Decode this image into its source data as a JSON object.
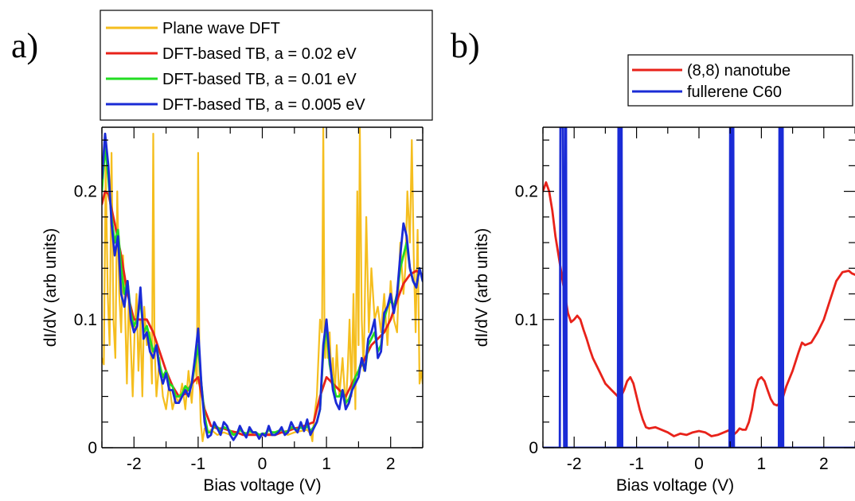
{
  "chart_data": [
    {
      "panel_tag": "a)",
      "type": "line",
      "xlabel": "Bias voltage (V)",
      "ylabel": "dI/dV (arb units)",
      "xlim": [
        -2.5,
        2.5
      ],
      "ylim": [
        0,
        0.25
      ],
      "xticks": [
        "-2",
        "-1",
        "0",
        "1",
        "2"
      ],
      "yticks": [
        "0",
        "0.1",
        "0.2"
      ],
      "xtick_values": [
        -2,
        -1,
        0,
        1,
        2
      ],
      "ytick_values": [
        0,
        0.1,
        0.2
      ],
      "grid": false,
      "legend_position": "top (above plot)",
      "series": [
        {
          "name": "Plane wave DFT",
          "color": "#F5BE1E",
          "x": [
            -2.5,
            -2.47,
            -2.44,
            -2.41,
            -2.38,
            -2.35,
            -2.32,
            -2.29,
            -2.26,
            -2.23,
            -2.2,
            -2.17,
            -2.14,
            -2.11,
            -2.08,
            -2.05,
            -2.02,
            -1.99,
            -1.96,
            -1.93,
            -1.9,
            -1.87,
            -1.84,
            -1.8,
            -1.75,
            -1.72,
            -1.7,
            -1.68,
            -1.65,
            -1.6,
            -1.55,
            -1.5,
            -1.45,
            -1.4,
            -1.35,
            -1.3,
            -1.25,
            -1.2,
            -1.15,
            -1.1,
            -1.05,
            -1.02,
            -1.0,
            -0.98,
            -0.96,
            -0.93,
            -0.9,
            -0.85,
            -0.8,
            -0.7,
            -0.6,
            -0.5,
            -0.4,
            -0.3,
            -0.2,
            -0.1,
            0.0,
            0.1,
            0.2,
            0.3,
            0.4,
            0.5,
            0.6,
            0.7,
            0.76,
            0.78,
            0.8,
            0.85,
            0.9,
            0.93,
            0.95,
            0.97,
            0.98,
            1.0,
            1.02,
            1.05,
            1.08,
            1.1,
            1.13,
            1.16,
            1.2,
            1.25,
            1.3,
            1.33,
            1.36,
            1.39,
            1.42,
            1.45,
            1.48,
            1.5,
            1.52,
            1.55,
            1.58,
            1.62,
            1.66,
            1.7,
            1.75,
            1.8,
            1.85,
            1.9,
            1.95,
            2.0,
            2.05,
            2.1,
            2.15,
            2.2,
            2.23,
            2.26,
            2.3,
            2.33,
            2.36,
            2.39,
            2.42,
            2.45,
            2.48,
            2.5
          ],
          "y": [
            0.07,
            0.065,
            0.22,
            0.12,
            0.08,
            0.23,
            0.1,
            0.07,
            0.2,
            0.12,
            0.09,
            0.15,
            0.11,
            0.05,
            0.12,
            0.08,
            0.04,
            0.09,
            0.12,
            0.06,
            0.1,
            0.04,
            0.11,
            0.08,
            0.09,
            0.05,
            0.245,
            0.08,
            0.04,
            0.07,
            0.04,
            0.03,
            0.05,
            0.03,
            0.04,
            0.035,
            0.05,
            0.03,
            0.06,
            0.035,
            0.07,
            0.05,
            0.23,
            0.06,
            0.02,
            0.005,
            0.015,
            0.012,
            0.014,
            0.01,
            0.012,
            0.01,
            0.012,
            0.01,
            0.011,
            0.01,
            0.01,
            0.011,
            0.01,
            0.012,
            0.01,
            0.012,
            0.013,
            0.014,
            0.01,
            0.005,
            0.02,
            0.04,
            0.1,
            0.09,
            0.25,
            0.08,
            0.07,
            0.1,
            0.07,
            0.09,
            0.05,
            0.07,
            0.04,
            0.08,
            0.04,
            0.07,
            0.03,
            0.06,
            0.1,
            0.04,
            0.12,
            0.03,
            0.2,
            0.08,
            0.25,
            0.1,
            0.06,
            0.18,
            0.09,
            0.14,
            0.1,
            0.11,
            0.09,
            0.12,
            0.08,
            0.13,
            0.1,
            0.09,
            0.16,
            0.12,
            0.14,
            0.2,
            0.16,
            0.24,
            0.15,
            0.09,
            0.17,
            0.05,
            0.06,
            0.05
          ]
        },
        {
          "name": "DFT-based TB, a = 0.02 eV",
          "color": "#E8221A",
          "x": [
            -2.5,
            -2.45,
            -2.4,
            -2.3,
            -2.2,
            -2.1,
            -2.0,
            -1.9,
            -1.8,
            -1.7,
            -1.6,
            -1.5,
            -1.4,
            -1.3,
            -1.2,
            -1.1,
            -1.0,
            -0.9,
            -0.8,
            -0.7,
            -0.6,
            -0.5,
            -0.4,
            -0.3,
            -0.2,
            -0.1,
            0.0,
            0.1,
            0.2,
            0.3,
            0.4,
            0.5,
            0.6,
            0.7,
            0.8,
            0.9,
            1.0,
            1.1,
            1.2,
            1.3,
            1.4,
            1.5,
            1.6,
            1.7,
            1.8,
            1.9,
            2.0,
            2.1,
            2.2,
            2.3,
            2.4,
            2.5
          ],
          "y": [
            0.19,
            0.2,
            0.198,
            0.175,
            0.15,
            0.12,
            0.1,
            0.1,
            0.1,
            0.09,
            0.075,
            0.06,
            0.048,
            0.04,
            0.042,
            0.05,
            0.055,
            0.03,
            0.017,
            0.015,
            0.015,
            0.013,
            0.012,
            0.01,
            0.01,
            0.01,
            0.01,
            0.01,
            0.01,
            0.012,
            0.013,
            0.015,
            0.016,
            0.018,
            0.02,
            0.04,
            0.055,
            0.05,
            0.045,
            0.04,
            0.05,
            0.06,
            0.07,
            0.08,
            0.085,
            0.09,
            0.1,
            0.115,
            0.128,
            0.135,
            0.138,
            0.135
          ]
        },
        {
          "name": "DFT-based TB, a = 0.01 eV",
          "color": "#22DD22",
          "x": [
            -2.5,
            -2.45,
            -2.4,
            -2.35,
            -2.3,
            -2.25,
            -2.2,
            -2.15,
            -2.1,
            -2.05,
            -2.0,
            -1.95,
            -1.9,
            -1.85,
            -1.8,
            -1.75,
            -1.7,
            -1.65,
            -1.6,
            -1.55,
            -1.5,
            -1.45,
            -1.4,
            -1.35,
            -1.3,
            -1.25,
            -1.2,
            -1.15,
            -1.1,
            -1.05,
            -1.0,
            -0.95,
            -0.9,
            -0.85,
            -0.8,
            -0.75,
            -0.7,
            -0.65,
            -0.6,
            -0.55,
            -0.5,
            -0.45,
            -0.4,
            -0.35,
            -0.3,
            -0.25,
            -0.2,
            -0.15,
            -0.1,
            -0.05,
            0.0,
            0.05,
            0.1,
            0.15,
            0.2,
            0.25,
            0.3,
            0.35,
            0.4,
            0.45,
            0.5,
            0.55,
            0.6,
            0.65,
            0.7,
            0.75,
            0.8,
            0.85,
            0.9,
            0.95,
            1.0,
            1.05,
            1.1,
            1.15,
            1.2,
            1.25,
            1.3,
            1.35,
            1.4,
            1.45,
            1.5,
            1.55,
            1.6,
            1.65,
            1.7,
            1.75,
            1.8,
            1.85,
            1.9,
            1.95,
            2.0,
            2.05,
            2.1,
            2.15,
            2.2,
            2.25,
            2.3,
            2.35,
            2.4,
            2.45,
            2.5
          ],
          "y": [
            0.2,
            0.235,
            0.21,
            0.18,
            0.16,
            0.17,
            0.14,
            0.12,
            0.13,
            0.105,
            0.095,
            0.1,
            0.115,
            0.09,
            0.095,
            0.085,
            0.075,
            0.08,
            0.065,
            0.055,
            0.06,
            0.05,
            0.048,
            0.04,
            0.04,
            0.042,
            0.048,
            0.045,
            0.05,
            0.065,
            0.08,
            0.05,
            0.025,
            0.012,
            0.012,
            0.017,
            0.016,
            0.013,
            0.016,
            0.015,
            0.013,
            0.01,
            0.011,
            0.014,
            0.012,
            0.011,
            0.013,
            0.012,
            0.012,
            0.01,
            0.011,
            0.011,
            0.014,
            0.012,
            0.012,
            0.013,
            0.014,
            0.012,
            0.013,
            0.016,
            0.015,
            0.014,
            0.016,
            0.014,
            0.017,
            0.013,
            0.016,
            0.02,
            0.03,
            0.075,
            0.095,
            0.065,
            0.05,
            0.04,
            0.04,
            0.045,
            0.035,
            0.038,
            0.045,
            0.055,
            0.06,
            0.068,
            0.06,
            0.08,
            0.085,
            0.09,
            0.075,
            0.08,
            0.1,
            0.11,
            0.115,
            0.11,
            0.12,
            0.14,
            0.15,
            0.16,
            0.14,
            0.13,
            0.125,
            0.14,
            0.13
          ]
        },
        {
          "name": "DFT-based TB, a = 0.005 eV",
          "color": "#1A2BD6",
          "x": [
            -2.5,
            -2.45,
            -2.4,
            -2.35,
            -2.3,
            -2.25,
            -2.2,
            -2.15,
            -2.1,
            -2.05,
            -2.0,
            -1.95,
            -1.9,
            -1.85,
            -1.8,
            -1.75,
            -1.7,
            -1.65,
            -1.6,
            -1.55,
            -1.5,
            -1.45,
            -1.4,
            -1.35,
            -1.3,
            -1.25,
            -1.2,
            -1.15,
            -1.1,
            -1.05,
            -1.0,
            -0.95,
            -0.9,
            -0.85,
            -0.8,
            -0.75,
            -0.7,
            -0.65,
            -0.6,
            -0.55,
            -0.5,
            -0.45,
            -0.4,
            -0.35,
            -0.3,
            -0.25,
            -0.2,
            -0.15,
            -0.1,
            -0.05,
            0.0,
            0.05,
            0.1,
            0.15,
            0.2,
            0.25,
            0.3,
            0.35,
            0.4,
            0.45,
            0.5,
            0.55,
            0.6,
            0.65,
            0.7,
            0.75,
            0.8,
            0.85,
            0.9,
            0.95,
            1.0,
            1.05,
            1.1,
            1.15,
            1.2,
            1.25,
            1.3,
            1.35,
            1.4,
            1.45,
            1.5,
            1.55,
            1.6,
            1.65,
            1.7,
            1.75,
            1.8,
            1.85,
            1.9,
            1.95,
            2.0,
            2.05,
            2.1,
            2.15,
            2.2,
            2.25,
            2.3,
            2.35,
            2.4,
            2.45,
            2.5
          ],
          "y": [
            0.21,
            0.245,
            0.22,
            0.175,
            0.15,
            0.165,
            0.12,
            0.11,
            0.13,
            0.1,
            0.09,
            0.095,
            0.125,
            0.085,
            0.09,
            0.075,
            0.07,
            0.08,
            0.06,
            0.05,
            0.058,
            0.045,
            0.045,
            0.035,
            0.035,
            0.04,
            0.045,
            0.04,
            0.05,
            0.07,
            0.093,
            0.05,
            0.02,
            0.008,
            0.01,
            0.02,
            0.015,
            0.01,
            0.02,
            0.017,
            0.01,
            0.006,
            0.01,
            0.017,
            0.012,
            0.008,
            0.016,
            0.012,
            0.012,
            0.007,
            0.011,
            0.009,
            0.017,
            0.01,
            0.01,
            0.012,
            0.016,
            0.01,
            0.012,
            0.02,
            0.015,
            0.012,
            0.02,
            0.013,
            0.022,
            0.01,
            0.015,
            0.02,
            0.03,
            0.08,
            0.1,
            0.07,
            0.045,
            0.035,
            0.03,
            0.045,
            0.03,
            0.035,
            0.045,
            0.05,
            0.055,
            0.07,
            0.06,
            0.085,
            0.09,
            0.1,
            0.07,
            0.075,
            0.105,
            0.11,
            0.12,
            0.105,
            0.12,
            0.15,
            0.175,
            0.165,
            0.14,
            0.13,
            0.125,
            0.14,
            0.13
          ]
        }
      ]
    },
    {
      "panel_tag": "b)",
      "type": "line",
      "xlabel": "Bias voltage (V)",
      "ylabel": "dI/dV (arb units)",
      "xlim": [
        -2.5,
        2.5
      ],
      "ylim": [
        0,
        0.25
      ],
      "xticks": [
        "-2",
        "-1",
        "0",
        "1",
        "2"
      ],
      "yticks": [
        "0",
        "0.1",
        "0.2"
      ],
      "xtick_values": [
        -2,
        -1,
        0,
        1,
        2
      ],
      "ytick_values": [
        0,
        0.1,
        0.2
      ],
      "grid": false,
      "legend_position": "top (above plot)",
      "series": [
        {
          "name": "(8,8) nanotube",
          "color": "#E8221A",
          "x": [
            -2.5,
            -2.45,
            -2.4,
            -2.35,
            -2.3,
            -2.25,
            -2.2,
            -2.15,
            -2.1,
            -2.05,
            -2.0,
            -1.95,
            -1.9,
            -1.85,
            -1.8,
            -1.75,
            -1.7,
            -1.6,
            -1.5,
            -1.4,
            -1.3,
            -1.25,
            -1.2,
            -1.15,
            -1.1,
            -1.05,
            -1.0,
            -0.95,
            -0.9,
            -0.85,
            -0.8,
            -0.7,
            -0.6,
            -0.5,
            -0.4,
            -0.3,
            -0.2,
            -0.1,
            0.0,
            0.1,
            0.2,
            0.3,
            0.4,
            0.5,
            0.55,
            0.6,
            0.65,
            0.7,
            0.75,
            0.8,
            0.85,
            0.9,
            0.95,
            1.0,
            1.05,
            1.1,
            1.15,
            1.2,
            1.25,
            1.3,
            1.35,
            1.4,
            1.5,
            1.6,
            1.65,
            1.7,
            1.8,
            1.9,
            2.0,
            2.1,
            2.2,
            2.3,
            2.4,
            2.45,
            2.5
          ],
          "y": [
            0.2,
            0.207,
            0.2,
            0.185,
            0.165,
            0.15,
            0.135,
            0.12,
            0.105,
            0.098,
            0.1,
            0.103,
            0.1,
            0.092,
            0.085,
            0.077,
            0.07,
            0.06,
            0.05,
            0.045,
            0.04,
            0.04,
            0.045,
            0.052,
            0.055,
            0.05,
            0.04,
            0.03,
            0.022,
            0.016,
            0.015,
            0.016,
            0.014,
            0.012,
            0.009,
            0.011,
            0.01,
            0.012,
            0.013,
            0.012,
            0.009,
            0.01,
            0.012,
            0.014,
            0.01,
            0.012,
            0.015,
            0.014,
            0.014,
            0.02,
            0.03,
            0.045,
            0.053,
            0.055,
            0.052,
            0.045,
            0.038,
            0.034,
            0.033,
            0.035,
            0.04,
            0.048,
            0.06,
            0.075,
            0.082,
            0.08,
            0.082,
            0.09,
            0.1,
            0.115,
            0.13,
            0.137,
            0.138,
            0.136,
            0.135
          ]
        },
        {
          "name": "fullerene C60",
          "color": "#1A2BD6",
          "x": [
            -2.5,
            -2.23,
            -2.22,
            -2.2,
            -2.18,
            -2.16,
            -2.15,
            -2.14,
            -2.13,
            -2.12,
            -2.11,
            -1.3,
            -1.29,
            -1.28,
            -1.27,
            -1.26,
            -1.25,
            -1.24,
            -1.23,
            -1.22,
            0.49,
            0.5,
            0.51,
            0.52,
            0.53,
            0.54,
            0.55,
            0.56,
            0.57,
            0.58,
            1.28,
            1.29,
            1.3,
            1.31,
            1.32,
            1.33,
            1.34,
            1.35,
            1.36,
            1.37,
            2.5
          ],
          "y": [
            0,
            0,
            0.25,
            0.25,
            0.25,
            0,
            0,
            0.25,
            0.25,
            0,
            0,
            0,
            0.25,
            0.25,
            0,
            0,
            0.25,
            0.25,
            0,
            0,
            0,
            0.25,
            0.25,
            0,
            0,
            0.25,
            0.25,
            0,
            0,
            0,
            0,
            0.25,
            0.25,
            0,
            0,
            0.25,
            0.25,
            0,
            0,
            0,
            0
          ]
        }
      ]
    }
  ]
}
